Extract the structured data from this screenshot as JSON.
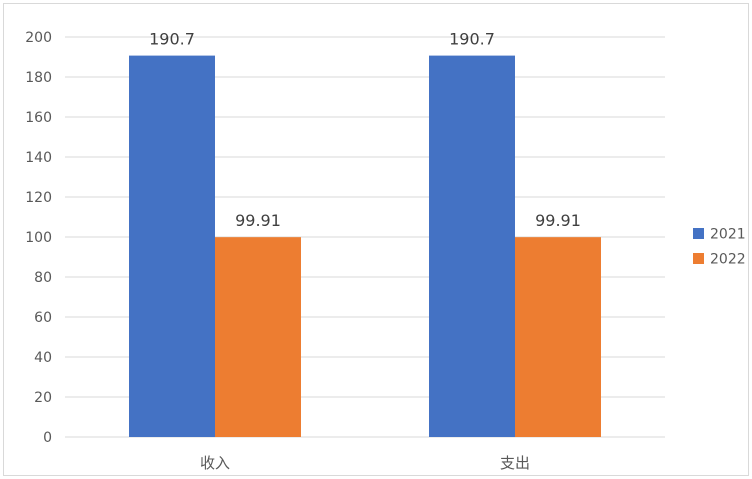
{
  "chart_data": {
    "type": "bar",
    "categories": [
      "收入",
      "支出"
    ],
    "series": [
      {
        "name": "2021",
        "values": [
          190.7,
          190.7
        ],
        "color": "#4472C4"
      },
      {
        "name": "2022",
        "values": [
          99.91,
          99.91
        ],
        "color": "#ED7D31"
      }
    ],
    "ylim": [
      0,
      200
    ],
    "yticks": [
      0,
      20,
      40,
      60,
      80,
      100,
      120,
      140,
      160,
      180,
      200
    ],
    "grid": true,
    "legend_position": "right",
    "data_labels": true,
    "gridline_color": "#d9d9d9"
  }
}
